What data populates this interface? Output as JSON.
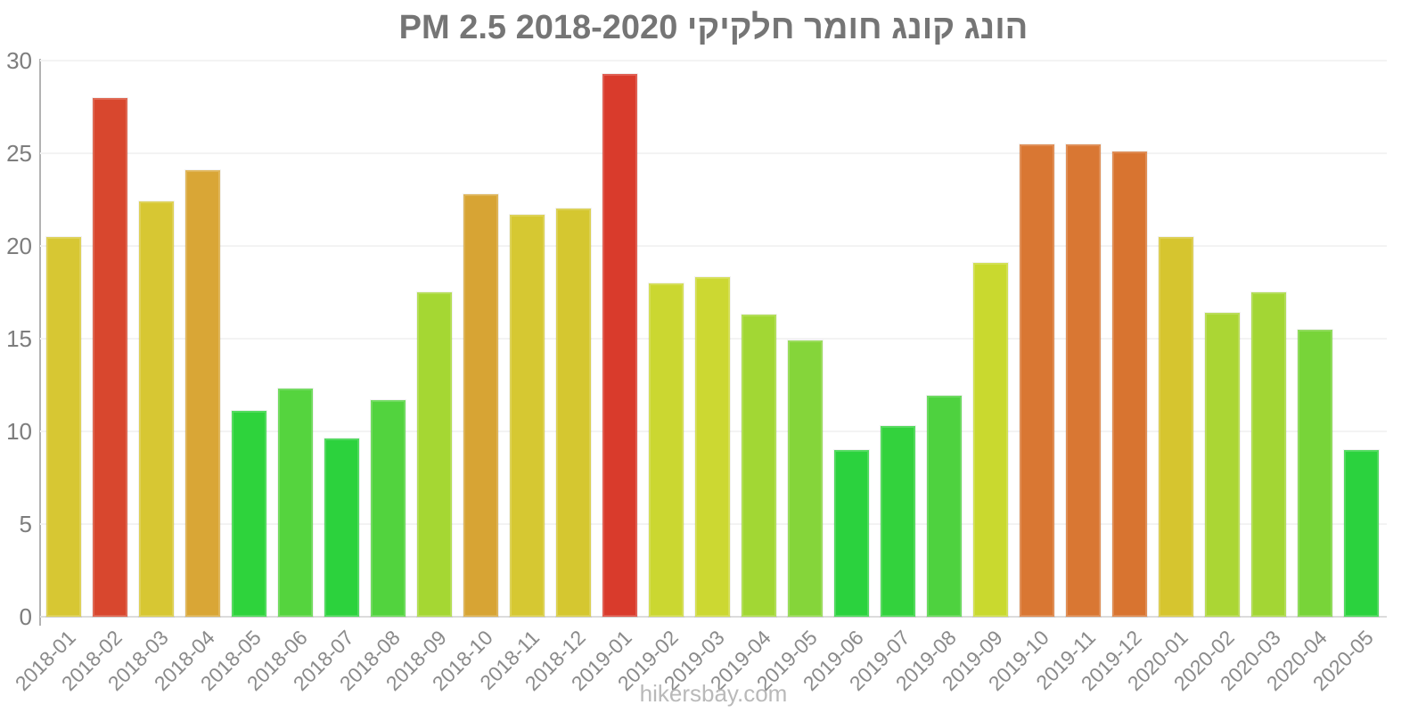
{
  "chart": {
    "title": "הונג קונג חומר חלקיקי PM 2.5 2018-2020"
  },
  "footer": {
    "text": "hikersbay.com"
  },
  "y_axis": {
    "ticks": [
      0,
      5,
      10,
      15,
      20,
      25,
      30
    ],
    "max": 30
  },
  "chart_data": {
    "type": "bar",
    "title": "הונג קונג חומר חלקיקי PM 2.5 2018-2020",
    "xlabel": "",
    "ylabel": "",
    "ylim": [
      0,
      30
    ],
    "grid": true,
    "legend": "none",
    "categories": [
      "2018-01",
      "2018-02",
      "2018-03",
      "2018-04",
      "2018-05",
      "2018-06",
      "2018-07",
      "2018-08",
      "2018-09",
      "2018-10",
      "2018-11",
      "2018-12",
      "2019-01",
      "2019-02",
      "2019-03",
      "2019-04",
      "2019-05",
      "2019-06",
      "2019-07",
      "2019-08",
      "2019-09",
      "2019-10",
      "2019-11",
      "2019-12",
      "2020-01",
      "2020-02",
      "2020-03",
      "2020-04",
      "2020-05"
    ],
    "values": [
      20.5,
      28.0,
      22.4,
      24.1,
      11.1,
      12.3,
      9.6,
      11.7,
      17.5,
      22.8,
      21.7,
      22.0,
      29.3,
      18.0,
      18.3,
      16.3,
      14.9,
      9.0,
      10.3,
      11.9,
      19.1,
      25.5,
      25.5,
      25.1,
      20.5,
      16.4,
      17.5,
      15.5,
      9.0
    ],
    "bar_colors": [
      "#d7c733",
      "#d8472e",
      "#d7c733",
      "#d9a636",
      "#2ed33c",
      "#55d43e",
      "#2cd23d",
      "#52d33e",
      "#a5d733",
      "#d7a434",
      "#d6c832",
      "#d5c730",
      "#d93b2c",
      "#cbd731",
      "#ccd832",
      "#a2d734",
      "#85d53a",
      "#2bd23e",
      "#33d23d",
      "#4ed23f",
      "#c9d92f",
      "#d97733",
      "#d97733",
      "#d87430",
      "#d6c52f",
      "#abd634",
      "#a3d634",
      "#78d439",
      "#2bd23e"
    ],
    "color_meaning": "green=low pollution, yellow=moderate, orange/red=high",
    "axis_color": "#b2b2b2",
    "tick_label_color": "#8a8a8a",
    "title_color": "#757575"
  }
}
